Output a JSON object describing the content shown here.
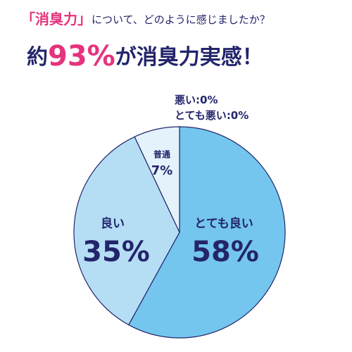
{
  "chart_data": {
    "type": "pie",
    "title": [
      "「消臭力」",
      "について、どのように感じましたか？"
    ],
    "headline": [
      "約",
      "93%",
      "が消臭力実感！"
    ],
    "categories": [
      "とても良い",
      "良い",
      "普通",
      "悪い",
      "とても悪い"
    ],
    "values": [
      58,
      35,
      7,
      0,
      0
    ],
    "value_labels": [
      "58%",
      "35%",
      "7%",
      ":0%",
      ":0%"
    ],
    "colors": [
      "#74c6ee",
      "#b5def5",
      "#e4f2fb",
      "#e4f2fb",
      "#e4f2fb"
    ]
  }
}
